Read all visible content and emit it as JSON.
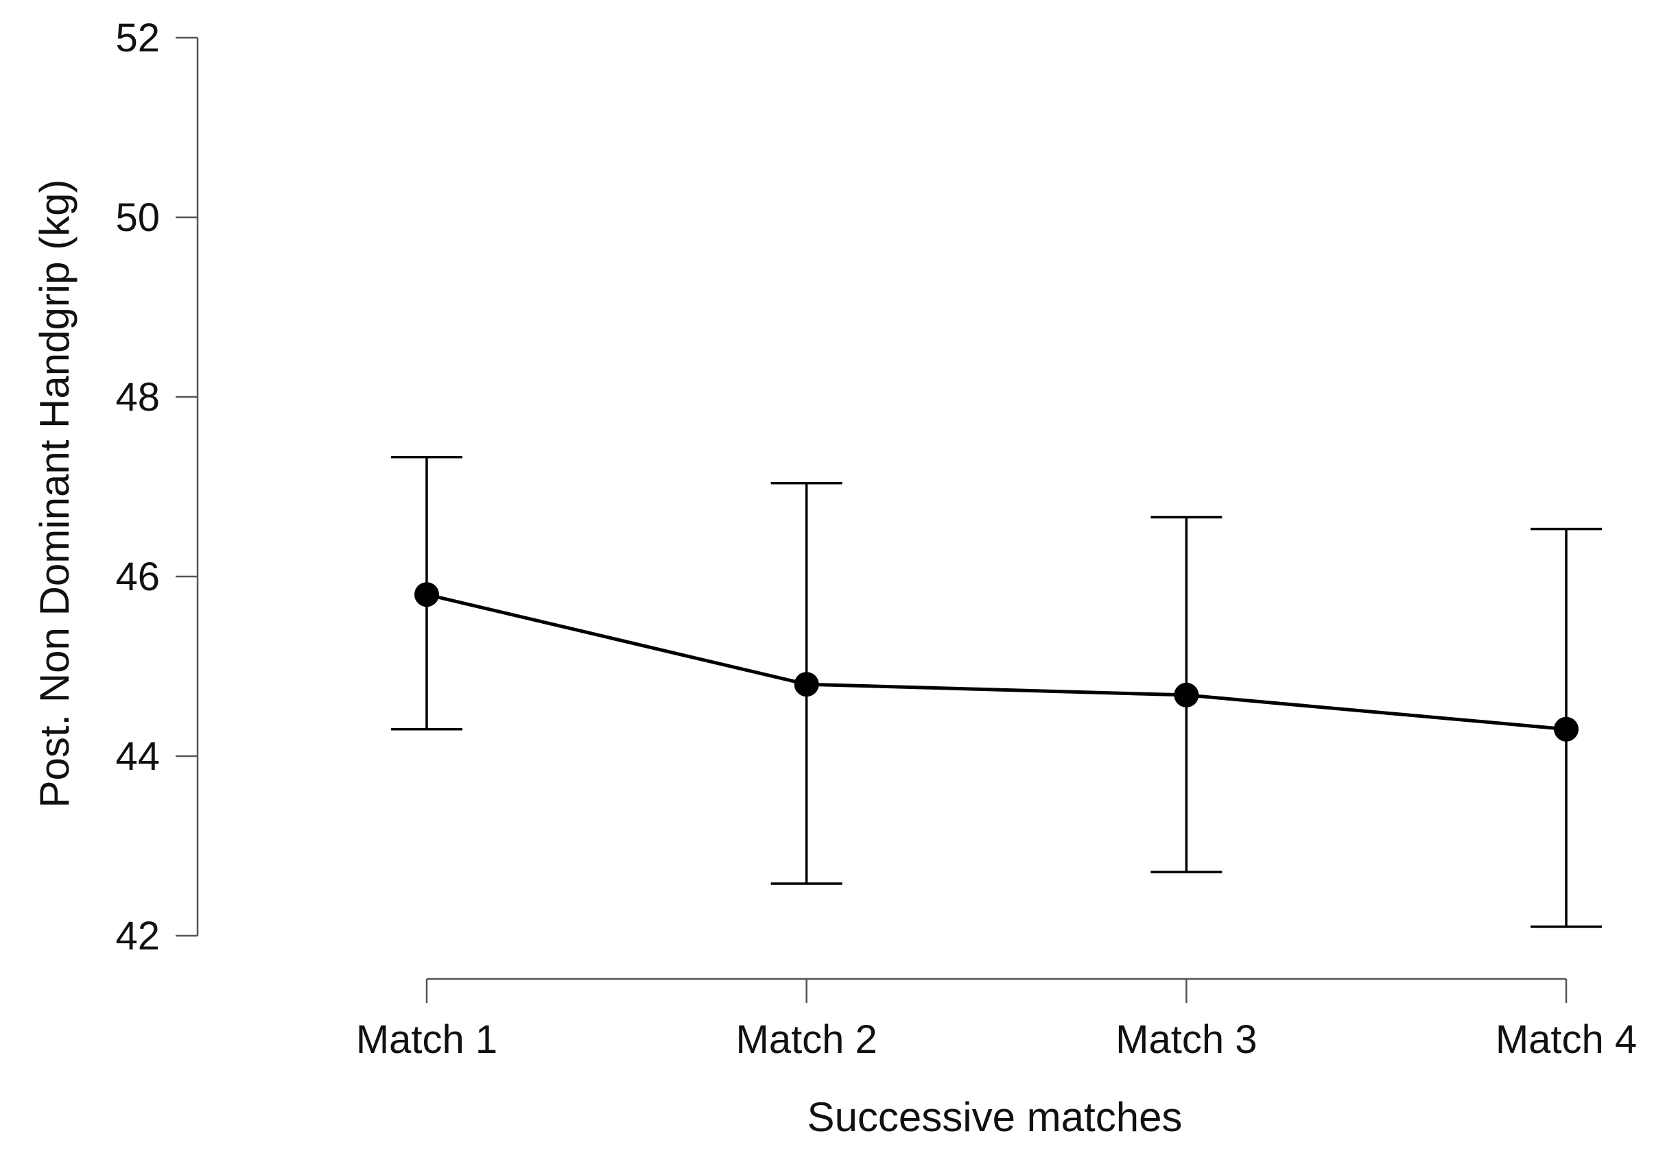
{
  "chart_data": {
    "type": "line",
    "categories": [
      "Match 1",
      "Match 2",
      "Match 3",
      "Match 4"
    ],
    "values": [
      45.8,
      44.8,
      44.68,
      44.3
    ],
    "error_upper": [
      47.33,
      47.04,
      46.66,
      46.53
    ],
    "error_lower": [
      44.3,
      42.58,
      42.71,
      42.1
    ],
    "xlabel": "Successive matches",
    "ylabel": "Post. Non Dominant Handgrip (kg)",
    "ylim": [
      42,
      52
    ],
    "yticks": [
      42,
      44,
      46,
      48,
      50,
      52
    ],
    "grid": false,
    "line_color": "#000000"
  }
}
